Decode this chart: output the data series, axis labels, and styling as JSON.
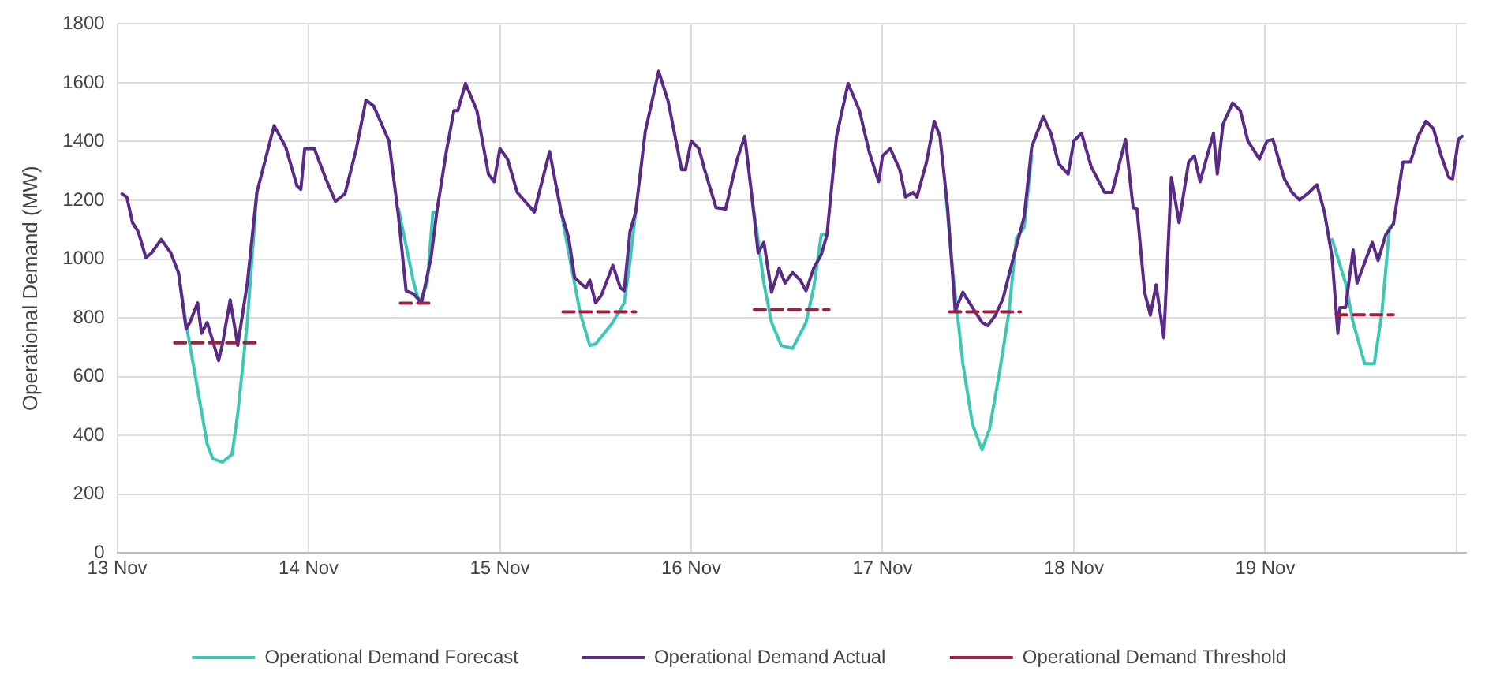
{
  "chart_data": {
    "type": "line",
    "ylabel": "Operational Demand (MW)",
    "xlim": [
      "--11-13",
      "--11-20T01:12"
    ],
    "ylim": [
      0,
      1800
    ],
    "xticks": [
      {
        "value": "--11-13",
        "label": "13 Nov"
      },
      {
        "value": "--11-14",
        "label": "14 Nov"
      },
      {
        "value": "--11-15",
        "label": "15 Nov"
      },
      {
        "value": "--11-16",
        "label": "16 Nov"
      },
      {
        "value": "--11-17",
        "label": "17 Nov"
      },
      {
        "value": "--11-18",
        "label": "18 Nov"
      },
      {
        "value": "--11-19",
        "label": "19 Nov"
      },
      {
        "value": "--11-20",
        "label": null
      }
    ],
    "yticks": [
      0,
      200,
      400,
      600,
      800,
      1000,
      1200,
      1400,
      1600,
      1800
    ],
    "grid": true,
    "legend": "bottom",
    "marker": "none",
    "series": [
      {
        "name": "Operational Demand Forecast",
        "color": "#3cc8b4",
        "line_style": "solid",
        "x": [
          "--11-13T07:41",
          "--11-13T08:38",
          "--11-13T10:05",
          "--11-13T11:17",
          "--11-13T12:00",
          "--11-13T13:12",
          "--11-13T14:24",
          "--11-13T15:07",
          "--11-13T16:19",
          "--11-13T17:31",
          "--11-13T21:36",
          "--11-14T11:17",
          "--11-14T13:12",
          "--11-14T13:55",
          "--11-14T14:53",
          "--11-14T15:36",
          "--11-14T16:05",
          "--11-15T00:00",
          "--11-15T07:41",
          "--11-15T08:38",
          "--11-15T10:05",
          "--11-15T11:17",
          "--11-15T12:00",
          "--11-15T14:10",
          "--11-15T15:36",
          "--11-15T16:19",
          "--11-15T17:02",
          "--11-16T00:00",
          "--11-16T07:41",
          "--11-16T08:10",
          "--11-16T09:07",
          "--11-16T10:05",
          "--11-16T11:17",
          "--11-16T12:43",
          "--11-16T14:24",
          "--11-16T15:22",
          "--11-16T16:19",
          "--11-16T17:02",
          "--11-17T00:00",
          "--11-17T07:55",
          "--11-17T08:53",
          "--11-17T10:05",
          "--11-17T11:17",
          "--11-17T12:29",
          "--11-17T13:26",
          "--11-17T14:38",
          "--11-17T15:50",
          "--11-17T16:48",
          "--11-17T17:46",
          "--11-17T18:43",
          "--11-19T00:00",
          "--11-19T08:24",
          "--11-19T10:05",
          "--11-19T11:02",
          "--11-19T12:29",
          "--11-19T13:41",
          "--11-19T14:38",
          "--11-19T15:36",
          "--11-19T16:05"
        ],
        "values": [
          954,
          780,
          557,
          371,
          320,
          309,
          335,
          474,
          784,
          1227,
          null,
          1170,
          918,
          850,
          918,
          1160,
          1160,
          null,
          1160,
          1021,
          815,
          706,
          711,
          784,
          851,
          990,
          1160,
          null,
          1196,
          1108,
          918,
          784,
          706,
          696,
          784,
          902,
          1083,
          1083,
          null,
          1227,
          938,
          644,
          438,
          351,
          423,
          608,
          815,
          1072,
          1108,
          1351,
          null,
          1067,
          918,
          784,
          644,
          644,
          815,
          1108,
          1119
        ]
      },
      {
        "name": "Operational Demand Actual",
        "color": "#5b2a86",
        "line_style": "solid",
        "x": [
          "--11-13T00:36",
          "--11-13T01:12",
          "--11-13T01:55",
          "--11-13T02:38",
          "--11-13T03:36",
          "--11-13T04:19",
          "--11-13T05:31",
          "--11-13T06:43",
          "--11-13T07:41",
          "--11-13T08:38",
          "--11-13T09:07",
          "--11-13T10:05",
          "--11-13T10:34",
          "--11-13T11:17",
          "--11-13T12:43",
          "--11-13T13:12",
          "--11-13T14:10",
          "--11-13T15:07",
          "--11-13T16:19",
          "--11-13T17:31",
          "--11-13T19:41",
          "--11-13T21:07",
          "--11-13T22:34",
          "--11-13T23:02",
          "--11-13T23:31",
          "--11-14T00:43",
          "--11-14T02:10",
          "--11-14T03:22",
          "--11-14T04:34",
          "--11-14T06:00",
          "--11-14T07:12",
          "--11-14T08:10",
          "--11-14T10:05",
          "--11-14T11:17",
          "--11-14T12:14",
          "--11-14T13:12",
          "--11-14T14:10",
          "--11-14T15:22",
          "--11-14T16:05",
          "--11-14T17:17",
          "--11-14T18:14",
          "--11-14T18:43",
          "--11-14T19:41",
          "--11-14T21:07",
          "--11-14T22:34",
          "--11-14T23:17",
          "--11-15T00:00",
          "--11-15T00:58",
          "--11-15T02:10",
          "--11-15T04:19",
          "--11-15T06:14",
          "--11-15T07:41",
          "--11-15T08:38",
          "--11-15T09:22",
          "--11-15T10:05",
          "--11-15T10:48",
          "--11-15T11:17",
          "--11-15T12:00",
          "--11-15T12:43",
          "--11-15T14:10",
          "--11-15T15:07",
          "--11-15T15:36",
          "--11-15T16:19",
          "--11-15T17:02",
          "--11-15T18:14",
          "--11-15T19:55",
          "--11-15T21:07",
          "--11-15T22:48",
          "--11-15T23:17",
          "--11-16T00:00",
          "--11-16T00:58",
          "--11-16T01:41",
          "--11-16T03:07",
          "--11-16T04:19",
          "--11-16T05:46",
          "--11-16T06:43",
          "--11-16T07:41",
          "--11-16T08:24",
          "--11-16T09:07",
          "--11-16T10:05",
          "--11-16T11:02",
          "--11-16T11:46",
          "--11-16T12:43",
          "--11-16T13:41",
          "--11-16T14:24",
          "--11-16T15:22",
          "--11-16T16:19",
          "--11-16T17:02",
          "--11-16T18:14",
          "--11-16T19:41",
          "--11-16T21:07",
          "--11-16T22:19",
          "--11-16T23:31",
          "--11-17T00:00",
          "--11-17T00:58",
          "--11-17T02:10",
          "--11-17T02:53",
          "--11-17T03:50",
          "--11-17T04:19",
          "--11-17T05:31",
          "--11-17T06:29",
          "--11-17T07:12",
          "--11-17T08:10",
          "--11-17T09:07",
          "--11-17T10:05",
          "--11-17T11:17",
          "--11-17T12:29",
          "--11-17T13:12",
          "--11-17T14:10",
          "--11-17T15:07",
          "--11-17T16:19",
          "--11-17T17:46",
          "--11-17T18:43",
          "--11-17T20:10",
          "--11-17T21:07",
          "--11-17T22:05",
          "--11-17T23:17",
          "--11-18T00:00",
          "--11-18T00:58",
          "--11-18T02:10",
          "--11-18T03:50",
          "--11-18T04:48",
          "--11-18T06:29",
          "--11-18T07:26",
          "--11-18T07:55",
          "--11-18T08:53",
          "--11-18T09:36",
          "--11-18T10:19",
          "--11-18T11:17",
          "--11-18T12:14",
          "--11-18T13:12",
          "--11-18T14:24",
          "--11-18T15:07",
          "--11-18T15:50",
          "--11-18T17:31",
          "--11-18T18:00",
          "--11-18T18:43",
          "--11-18T19:55",
          "--11-18T20:53",
          "--11-18T21:50",
          "--11-18T23:17",
          "--11-19T00:14",
          "--11-19T00:58",
          "--11-19T02:24",
          "--11-19T03:22",
          "--11-19T04:19",
          "--11-19T05:31",
          "--11-19T06:29",
          "--11-19T07:26",
          "--11-19T08:24",
          "--11-19T09:07",
          "--11-19T09:22",
          "--11-19T10:05",
          "--11-19T11:02",
          "--11-19T11:31",
          "--11-19T13:26",
          "--11-19T14:10",
          "--11-19T15:07",
          "--11-19T16:05",
          "--11-19T17:17",
          "--11-19T18:14",
          "--11-19T19:12",
          "--11-19T20:10",
          "--11-19T21:07",
          "--11-19T22:05",
          "--11-19T23:02",
          "--11-19T23:31",
          "--11-20T00:14",
          "--11-20T00:43"
        ],
        "values": [
          1222,
          1211,
          1124,
          1093,
          1005,
          1021,
          1067,
          1021,
          954,
          763,
          784,
          851,
          747,
          784,
          655,
          711,
          861,
          706,
          918,
          1227,
          1454,
          1382,
          1248,
          1237,
          1376,
          1376,
          1273,
          1196,
          1222,
          1376,
          1541,
          1521,
          1402,
          1144,
          892,
          881,
          851,
          1005,
          1160,
          1366,
          1505,
          1505,
          1598,
          1505,
          1289,
          1263,
          1376,
          1340,
          1227,
          1160,
          1366,
          1160,
          1072,
          938,
          918,
          902,
          928,
          851,
          876,
          979,
          902,
          892,
          1093,
          1160,
          1433,
          1639,
          1536,
          1304,
          1304,
          1402,
          1376,
          1304,
          1175,
          1170,
          1340,
          1418,
          1196,
          1021,
          1057,
          887,
          969,
          918,
          954,
          928,
          892,
          969,
          1015,
          1083,
          1418,
          1598,
          1505,
          1366,
          1263,
          1351,
          1376,
          1304,
          1211,
          1227,
          1211,
          1330,
          1469,
          1418,
          1175,
          825,
          887,
          835,
          784,
          773,
          809,
          866,
          995,
          1144,
          1382,
          1485,
          1428,
          1325,
          1289,
          1402,
          1428,
          1315,
          1227,
          1227,
          1407,
          1175,
          1170,
          887,
          809,
          912,
          732,
          1278,
          1124,
          1330,
          1351,
          1263,
          1428,
          1289,
          1459,
          1531,
          1505,
          1402,
          1340,
          1402,
          1407,
          1273,
          1227,
          1201,
          1227,
          1253,
          1160,
          1005,
          747,
          835,
          835,
          1031,
          918,
          1057,
          995,
          1083,
          1119,
          1330,
          1330,
          1418,
          1469,
          1443,
          1351,
          1278,
          1273,
          1407,
          1418
        ]
      },
      {
        "name": "Operational Demand Threshold",
        "color": "#a0203f",
        "line_style": "dashed",
        "x": [
          "--11-13T07:12",
          "--11-13T18:00",
          "--11-14T02:24",
          "--11-14T11:31",
          "--11-14T15:07",
          "--11-15T00:00",
          "--11-15T07:55",
          "--11-15T17:02",
          "--11-16T00:00",
          "--11-16T07:55",
          "--11-16T17:17",
          "--11-17T00:00",
          "--11-17T08:24",
          "--11-17T17:17",
          "--11-19T00:00",
          "--11-19T08:53",
          "--11-19T16:05"
        ],
        "values": [
          715,
          715,
          null,
          850,
          850,
          null,
          820,
          820,
          null,
          828,
          828,
          null,
          820,
          820,
          null,
          810,
          810
        ]
      }
    ]
  }
}
